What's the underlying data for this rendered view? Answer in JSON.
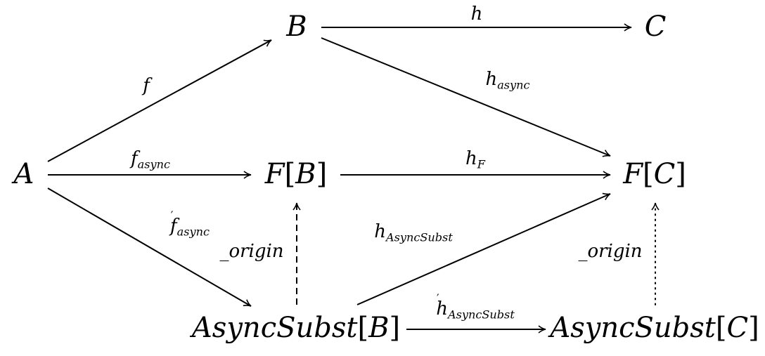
{
  "nodes": {
    "A": "A",
    "B": "B",
    "C": "C",
    "FB": {
      "head": "F",
      "arg": "B"
    },
    "FC": {
      "head": "F",
      "arg": "C"
    },
    "ASB": {
      "head": "AsyncSubst",
      "arg": "B"
    },
    "ASC": {
      "head": "AsyncSubst",
      "arg": "C"
    }
  },
  "edges": {
    "f": {
      "base": "f",
      "sub": ""
    },
    "f_async": {
      "base": "f",
      "sub": "async"
    },
    "f_prime": {
      "base": "f",
      "prime": "′",
      "sub": "async"
    },
    "h": {
      "base": "h",
      "sub": ""
    },
    "h_async": {
      "base": "h",
      "sub": "async"
    },
    "h_F": {
      "base": "h",
      "sub": "F"
    },
    "h_as": {
      "base": "h",
      "sub": "AsyncSubst"
    },
    "h_as_prime": {
      "base": "h",
      "prime": "′",
      "sub": "AsyncSubst"
    },
    "origin_left": "_origin",
    "origin_right": "_origin"
  },
  "colors": {
    "ink": "#000000",
    "background": "#ffffff"
  }
}
